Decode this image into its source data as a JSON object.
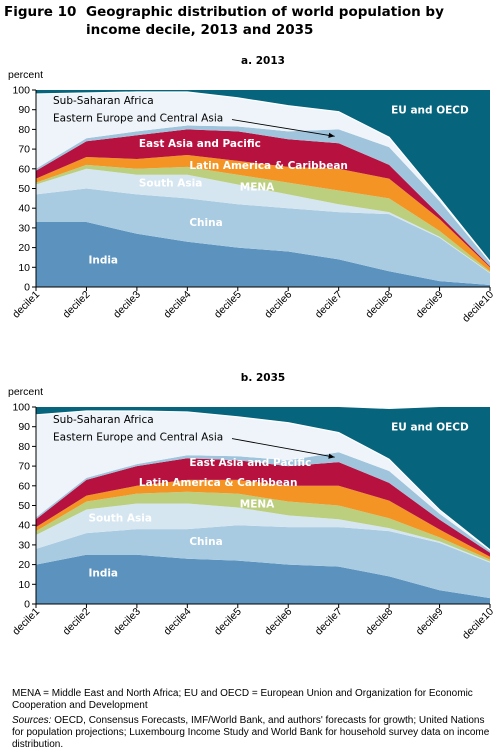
{
  "figure": {
    "number": "Figure 10",
    "title": "Geographic distribution of world population by income decile, 2013 and 2035"
  },
  "notes": {
    "abbreviations": "MENA = Middle East and North Africa; EU and OECD = European Union and Organization for Economic Cooperation and Development",
    "sources_label": "Sources:",
    "sources_text": "OECD, Consensus Forecasts, IMF/World Bank, and authors' forecasts for growth; United Nations for population projections; Luxembourg Income Study and World Bank for household survey data on income distribution."
  },
  "colors": {
    "India": "#5b93be",
    "China": "#a9cbe2",
    "South Asia": "#d6e6f1",
    "MENA": "#bccf7f",
    "Latin America & Caribbean": "#f39424",
    "East Asia and Pacific": "#b7123f",
    "Eastern Europe and Central Asia": "#9fc4dc",
    "Sub-Saharan Africa": "#eef4f9",
    "EU and OECD": "#06647c"
  },
  "chart_data": [
    {
      "type": "area",
      "stacked": true,
      "title": "a. 2013",
      "ylabel": "percent",
      "ylim": [
        0,
        100
      ],
      "yticks": [
        0,
        10,
        20,
        30,
        40,
        50,
        60,
        70,
        80,
        90,
        100
      ],
      "categories": [
        "decile1",
        "decile2",
        "decile3",
        "decile4",
        "decile5",
        "decile6",
        "decile7",
        "decile8",
        "decile9",
        "decile10"
      ],
      "series": [
        {
          "name": "India",
          "values": [
            33,
            33,
            27,
            23,
            20,
            18,
            14,
            8,
            3,
            1
          ]
        },
        {
          "name": "China",
          "values": [
            14,
            17,
            20,
            22,
            22,
            22,
            24,
            29,
            22,
            6
          ]
        },
        {
          "name": "South Asia",
          "values": [
            5,
            10,
            10,
            12,
            10,
            7,
            4,
            1,
            0.5,
            0.3
          ]
        },
        {
          "name": "MENA",
          "values": [
            1,
            2,
            3,
            4,
            5,
            6,
            7,
            7,
            3,
            0.7
          ]
        },
        {
          "name": "Latin America & Caribbean",
          "values": [
            2,
            4,
            5,
            6,
            7,
            8,
            11,
            10,
            6,
            2
          ]
        },
        {
          "name": "East Asia and Pacific",
          "values": [
            4,
            8,
            12,
            13,
            15,
            14,
            13,
            7,
            2,
            0.5
          ]
        },
        {
          "name": "Eastern Europe and Central Asia",
          "values": [
            1,
            1.5,
            2,
            2,
            2.5,
            4,
            7,
            9,
            7,
            2
          ]
        },
        {
          "name": "Sub-Saharan Africa",
          "values": [
            38,
            23,
            20,
            17,
            14.5,
            13,
            9,
            5,
            1.5,
            0.5
          ]
        },
        {
          "name": "EU and OECD",
          "values": [
            2,
            1.5,
            1,
            1,
            4,
            8,
            11,
            24,
            55,
            87
          ]
        }
      ],
      "annotations": [
        {
          "label": "Sub-Saharan Africa",
          "x": "decile1",
          "y": 95
        },
        {
          "label": "Eastern Europe and Central Asia",
          "x": "decile1",
          "y": 86
        },
        {
          "label": "East Asia and Pacific",
          "x": "decile3",
          "y": 73
        },
        {
          "label": "Latin America & Caribbean",
          "x": "decile4",
          "y": 62
        },
        {
          "label": "MENA",
          "x": "decile5",
          "y": 51
        },
        {
          "label": "South Asia",
          "x": "decile3",
          "y": 53
        },
        {
          "label": "China",
          "x": "decile4",
          "y": 33
        },
        {
          "label": "India",
          "x": "decile2",
          "y": 14
        },
        {
          "label": "EU and OECD",
          "x": "decile8",
          "y": 90
        }
      ]
    },
    {
      "type": "area",
      "stacked": true,
      "title": "b. 2035",
      "ylabel": "percent",
      "ylim": [
        0,
        100
      ],
      "yticks": [
        0,
        10,
        20,
        30,
        40,
        50,
        60,
        70,
        80,
        90,
        100
      ],
      "categories": [
        "decile1",
        "decile2",
        "decile3",
        "decile4",
        "decile5",
        "decile6",
        "decile7",
        "decile8",
        "decile9",
        "decile10"
      ],
      "series": [
        {
          "name": "India",
          "values": [
            20,
            25,
            25,
            23,
            22,
            20,
            19,
            14,
            7,
            3
          ]
        },
        {
          "name": "China",
          "values": [
            8,
            11,
            13,
            15,
            18,
            19,
            20,
            23,
            24,
            18
          ]
        },
        {
          "name": "South Asia",
          "values": [
            7,
            12,
            13,
            13,
            9,
            6,
            4,
            1.5,
            0.8,
            0.5
          ]
        },
        {
          "name": "MENA",
          "values": [
            2,
            4,
            5,
            6,
            7,
            7,
            7,
            5,
            2,
            1
          ]
        },
        {
          "name": "Latin America & Caribbean",
          "values": [
            2,
            3,
            4,
            6,
            7,
            8,
            10,
            9,
            4,
            1.5
          ]
        },
        {
          "name": "East Asia and Pacific",
          "values": [
            4,
            8,
            10,
            11,
            10,
            10,
            12,
            9,
            5,
            2
          ]
        },
        {
          "name": "Eastern Europe and Central Asia",
          "values": [
            1,
            1,
            1,
            1.5,
            2,
            3,
            5,
            6,
            3,
            1
          ]
        },
        {
          "name": "Sub-Saharan Africa",
          "values": [
            52,
            34,
            27,
            22,
            20,
            19,
            10,
            6,
            2,
            0.5
          ]
        },
        {
          "name": "EU and OECD",
          "values": [
            4,
            2,
            2,
            2.5,
            5,
            8,
            13,
            25.5,
            52.2,
            72.5
          ]
        }
      ],
      "annotations": [
        {
          "label": "Sub-Saharan Africa",
          "x": "decile1",
          "y": 94
        },
        {
          "label": "Eastern Europe and Central Asia",
          "x": "decile1",
          "y": 85
        },
        {
          "label": "East Asia and Pacific",
          "x": "decile4",
          "y": 72
        },
        {
          "label": "Latin America & Caribbean",
          "x": "decile3",
          "y": 62
        },
        {
          "label": "MENA",
          "x": "decile5",
          "y": 51
        },
        {
          "label": "South Asia",
          "x": "decile2",
          "y": 44
        },
        {
          "label": "China",
          "x": "decile4",
          "y": 32
        },
        {
          "label": "India",
          "x": "decile2",
          "y": 16
        },
        {
          "label": "EU and OECD",
          "x": "decile8",
          "y": 90
        }
      ]
    }
  ]
}
